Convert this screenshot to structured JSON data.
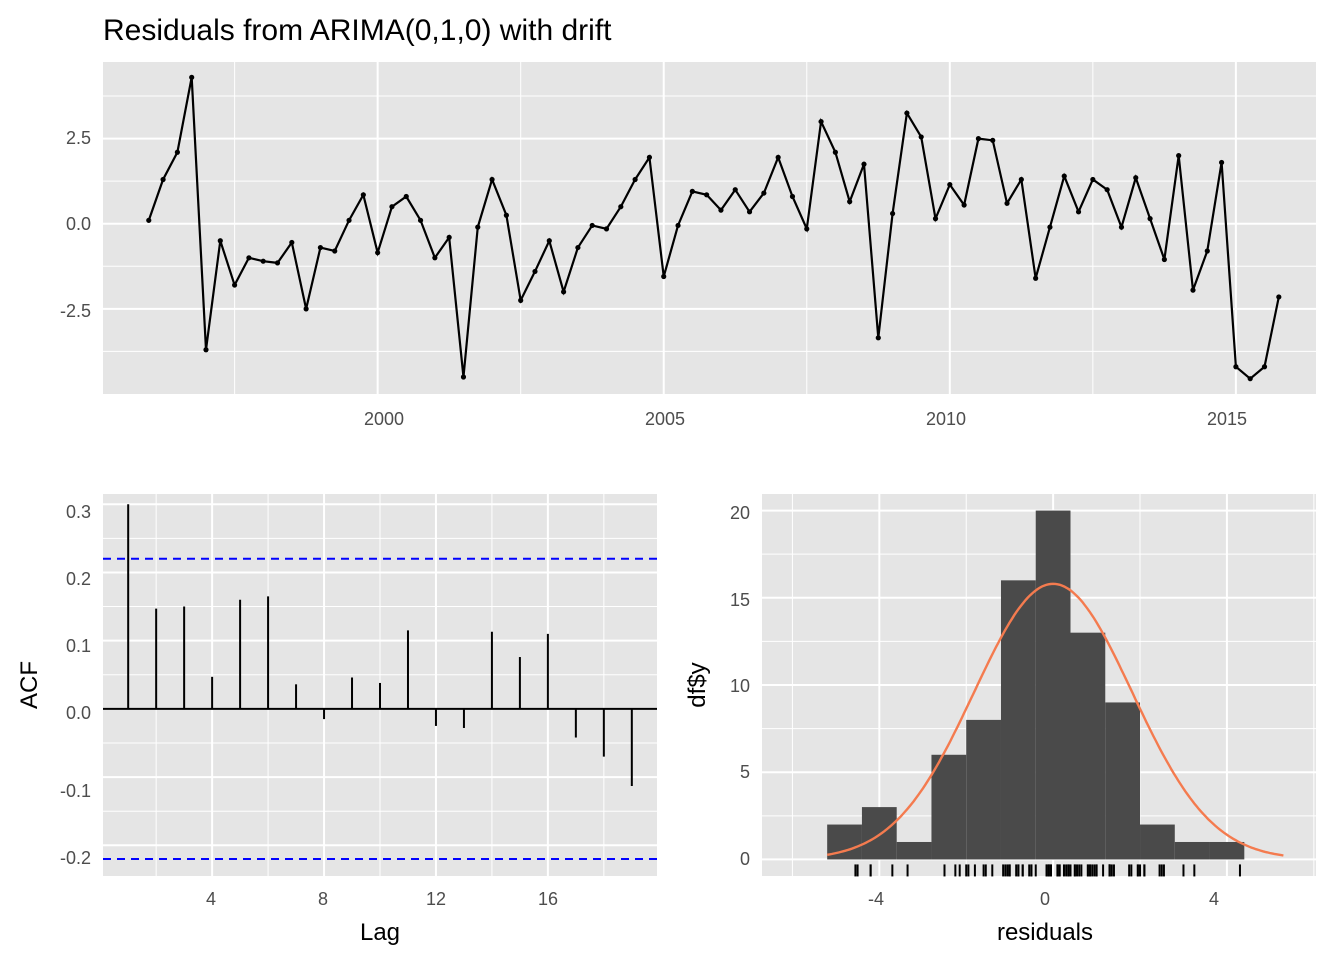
{
  "title": "Residuals from ARIMA(0,1,0) with drift",
  "colors": {
    "panel_bg": "#e5e5e5",
    "grid_major": "#ffffff",
    "line": "#000000",
    "ci": "#0000ff",
    "bar": "#4a4a4a",
    "density": "#f47b4f"
  },
  "chart_data": [
    {
      "type": "line",
      "x_ticks": [
        "2000",
        "2005",
        "2010",
        "2015"
      ],
      "y_ticks": [
        "-2.5",
        "0.0",
        "2.5"
      ],
      "xlim": [
        1995.2,
        2016.4
      ],
      "ylim": [
        -5.0,
        4.75
      ],
      "start": 1996.0,
      "step": 0.25,
      "values": [
        0.1,
        1.3,
        2.1,
        4.3,
        -3.7,
        -0.5,
        -1.8,
        -1.0,
        -1.1,
        -1.15,
        -0.55,
        -2.5,
        -0.7,
        -0.8,
        0.1,
        0.85,
        -0.85,
        0.5,
        0.8,
        0.1,
        -1.0,
        -0.4,
        -4.5,
        -0.1,
        1.3,
        0.25,
        -2.25,
        -1.4,
        -0.5,
        -2.0,
        -0.7,
        -0.05,
        -0.15,
        0.5,
        1.3,
        1.95,
        -1.55,
        -0.05,
        0.95,
        0.85,
        0.4,
        1.0,
        0.35,
        0.9,
        1.95,
        0.8,
        -0.15,
        3.0,
        2.1,
        0.65,
        1.75,
        -3.35,
        0.3,
        3.25,
        2.55,
        0.15,
        1.15,
        0.55,
        2.5,
        2.45,
        0.6,
        1.3,
        -1.6,
        -0.1,
        1.4,
        0.35,
        1.3,
        1.0,
        -0.1,
        1.35,
        0.15,
        -1.05,
        2.0,
        -1.95,
        -0.8,
        1.8,
        -4.2,
        -4.55,
        -4.2,
        -2.15
      ]
    },
    {
      "type": "bar",
      "xlabel": "Lag",
      "ylabel": "ACF",
      "x_ticks": [
        "4",
        "8",
        "12",
        "16"
      ],
      "y_ticks": [
        "-0.2",
        "-0.1",
        "0.0",
        "0.1",
        "0.2",
        "0.3"
      ],
      "xlim": [
        0.1,
        19.9
      ],
      "ylim": [
        -0.245,
        0.315
      ],
      "ci": 0.22,
      "lags": [
        1,
        2,
        3,
        4,
        5,
        6,
        7,
        8,
        9,
        10,
        11,
        12,
        13,
        14,
        15,
        16,
        17,
        18,
        19
      ],
      "values": [
        0.3,
        0.147,
        0.15,
        0.047,
        0.16,
        0.165,
        0.036,
        -0.015,
        0.046,
        0.038,
        0.115,
        -0.025,
        -0.028,
        0.113,
        0.076,
        0.11,
        -0.042,
        -0.07,
        -0.113
      ]
    },
    {
      "type": "bar",
      "xlabel": "residuals",
      "ylabel": "df$y",
      "x_ticks": [
        "-4",
        "0",
        "4"
      ],
      "y_ticks": [
        "0",
        "5",
        "10",
        "15",
        "20"
      ],
      "xlim": [
        -6.7,
        6.05
      ],
      "ylim": [
        -0.95,
        20.95
      ],
      "bin_edges": [
        -5.2,
        -4.4,
        -3.6,
        -2.8,
        -2.0,
        -1.2,
        -0.4,
        0.4,
        1.2,
        2.0,
        2.8,
        3.6,
        4.4
      ],
      "counts": [
        2,
        3,
        1,
        6,
        8,
        16,
        20,
        13,
        9,
        2,
        1,
        1
      ],
      "density_peak": 15.8,
      "density_sd": 1.82,
      "density_range": [
        -5.2,
        5.3
      ],
      "rug": [
        0.1,
        1.3,
        2.1,
        4.3,
        -3.7,
        -0.5,
        -1.8,
        -1.0,
        -1.1,
        -1.15,
        -0.55,
        -2.5,
        -0.7,
        -0.8,
        0.1,
        0.85,
        -0.85,
        0.5,
        0.8,
        0.1,
        -1.0,
        -0.4,
        -4.5,
        -0.1,
        1.3,
        0.25,
        -2.25,
        -1.4,
        -0.5,
        -2.0,
        -0.7,
        -0.05,
        -0.15,
        0.5,
        1.3,
        1.95,
        -1.55,
        -0.05,
        0.95,
        0.85,
        0.4,
        1.0,
        0.35,
        0.9,
        1.95,
        0.8,
        -0.15,
        3.0,
        2.1,
        0.65,
        1.75,
        -3.35,
        0.3,
        3.25,
        2.55,
        0.15,
        1.15,
        0.55,
        2.5,
        2.45,
        0.6,
        1.3,
        -1.6,
        -0.1,
        1.4,
        0.35,
        1.3,
        1.0,
        -0.1,
        1.35,
        0.15,
        -1.05,
        2.0,
        -1.95,
        -0.8,
        1.8,
        -4.2,
        -4.55,
        -4.2,
        -2.15
      ]
    }
  ]
}
